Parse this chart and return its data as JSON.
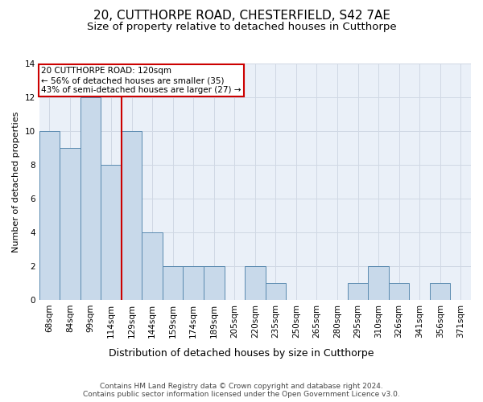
{
  "title1": "20, CUTTHORPE ROAD, CHESTERFIELD, S42 7AE",
  "title2": "Size of property relative to detached houses in Cutthorpe",
  "xlabel": "Distribution of detached houses by size in Cutthorpe",
  "ylabel": "Number of detached properties",
  "categories": [
    "68sqm",
    "84sqm",
    "99sqm",
    "114sqm",
    "129sqm",
    "144sqm",
    "159sqm",
    "174sqm",
    "189sqm",
    "205sqm",
    "220sqm",
    "235sqm",
    "250sqm",
    "265sqm",
    "280sqm",
    "295sqm",
    "310sqm",
    "326sqm",
    "341sqm",
    "356sqm",
    "371sqm"
  ],
  "values": [
    10,
    9,
    12,
    8,
    10,
    4,
    2,
    2,
    2,
    0,
    2,
    1,
    0,
    0,
    0,
    1,
    2,
    1,
    0,
    1,
    0
  ],
  "bar_color": "#c8d9ea",
  "bar_edge_color": "#5a8ab0",
  "vline_x": 3.5,
  "vline_color": "#cc0000",
  "annotation_line1": "20 CUTTHORPE ROAD: 120sqm",
  "annotation_line2": "← 56% of detached houses are smaller (35)",
  "annotation_line3": "43% of semi-detached houses are larger (27) →",
  "annotation_box_color": "#ffffff",
  "annotation_box_edge_color": "#cc0000",
  "ylim": [
    0,
    14
  ],
  "yticks": [
    0,
    2,
    4,
    6,
    8,
    10,
    12,
    14
  ],
  "grid_color": "#d0d8e4",
  "background_color": "#eaf0f8",
  "footer_text": "Contains HM Land Registry data © Crown copyright and database right 2024.\nContains public sector information licensed under the Open Government Licence v3.0.",
  "title1_fontsize": 11,
  "title2_fontsize": 9.5,
  "xlabel_fontsize": 9,
  "ylabel_fontsize": 8,
  "tick_fontsize": 7.5,
  "annot_fontsize": 7.5,
  "footer_fontsize": 6.5
}
